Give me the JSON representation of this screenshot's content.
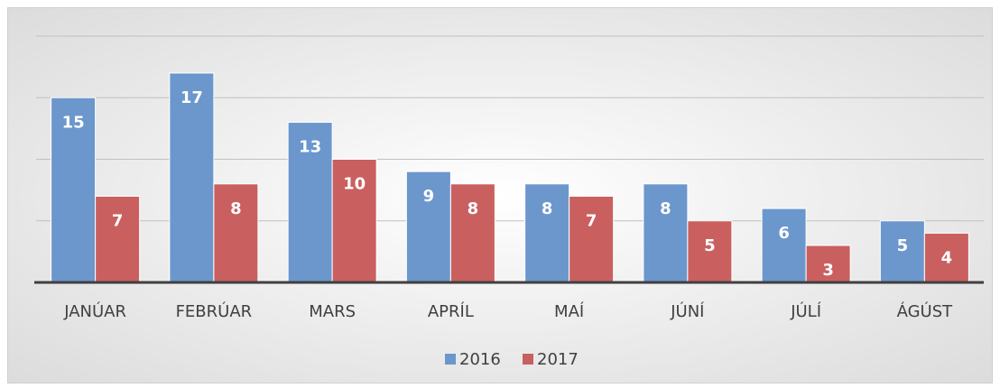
{
  "chart_data": {
    "type": "bar",
    "categories": [
      "JANÚAR",
      "FEBRÚAR",
      "MARS",
      "APRÍL",
      "MAÍ",
      "JÚNÍ",
      "JÚLÍ",
      "ÁGÚST"
    ],
    "series": [
      {
        "name": "2016",
        "color": "#6b97cd",
        "values": [
          15,
          17,
          13,
          9,
          8,
          8,
          6,
          5
        ]
      },
      {
        "name": "2017",
        "color": "#c9605f",
        "values": [
          7,
          8,
          10,
          8,
          7,
          5,
          3,
          4
        ]
      }
    ],
    "ylim": [
      0,
      20
    ],
    "yticks": [
      0,
      5,
      10,
      15,
      20
    ],
    "grid": true,
    "legend": "bottom"
  }
}
